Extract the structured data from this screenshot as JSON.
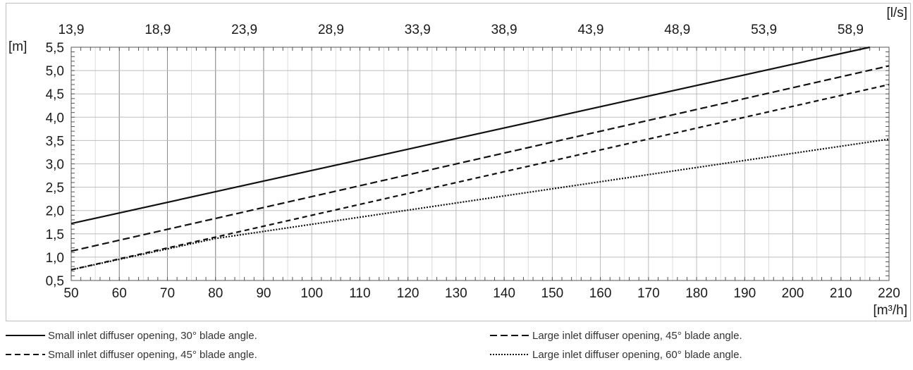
{
  "chart_data": {
    "type": "line",
    "x": [
      50,
      220
    ],
    "xlabel": "[m³/h]",
    "ylabel": "[m]",
    "top_axis_label": "[l/s]",
    "xlim": [
      50,
      220
    ],
    "ylim": [
      0.5,
      5.5
    ],
    "grid": true,
    "x_ticks": [
      "50",
      "60",
      "70",
      "80",
      "90",
      "100",
      "110",
      "120",
      "130",
      "140",
      "150",
      "160",
      "170",
      "180",
      "190",
      "200",
      "210",
      "220"
    ],
    "y_ticks": [
      "0,5",
      "1,0",
      "1,5",
      "2,0",
      "2,5",
      "3,0",
      "3,5",
      "4,0",
      "4,5",
      "5,0",
      "5,5"
    ],
    "top_ticks": [
      "13,9",
      "18,9",
      "23,9",
      "28,9",
      "33,9",
      "38,9",
      "43,9",
      "48,9",
      "53,9",
      "58,9"
    ],
    "series": [
      {
        "name": "Small inlet diffuser opening, 30° blade angle.",
        "style": "solid",
        "x": [
          50,
          216
        ],
        "y": [
          1.72,
          5.5
        ]
      },
      {
        "name": "Large inlet diffuser opening, 45° blade angle.",
        "style": "dashed",
        "x": [
          50,
          220
        ],
        "y": [
          1.13,
          5.1
        ]
      },
      {
        "name": "Small inlet diffuser opening, 45° blade angle.",
        "style": "short-dashed",
        "x": [
          50,
          220
        ],
        "y": [
          0.73,
          4.7
        ]
      },
      {
        "name": "Large inlet diffuser opening, 60° blade angle.",
        "style": "dotted",
        "x": [
          50,
          80,
          220
        ],
        "y": [
          0.73,
          1.4,
          3.53
        ]
      }
    ]
  }
}
